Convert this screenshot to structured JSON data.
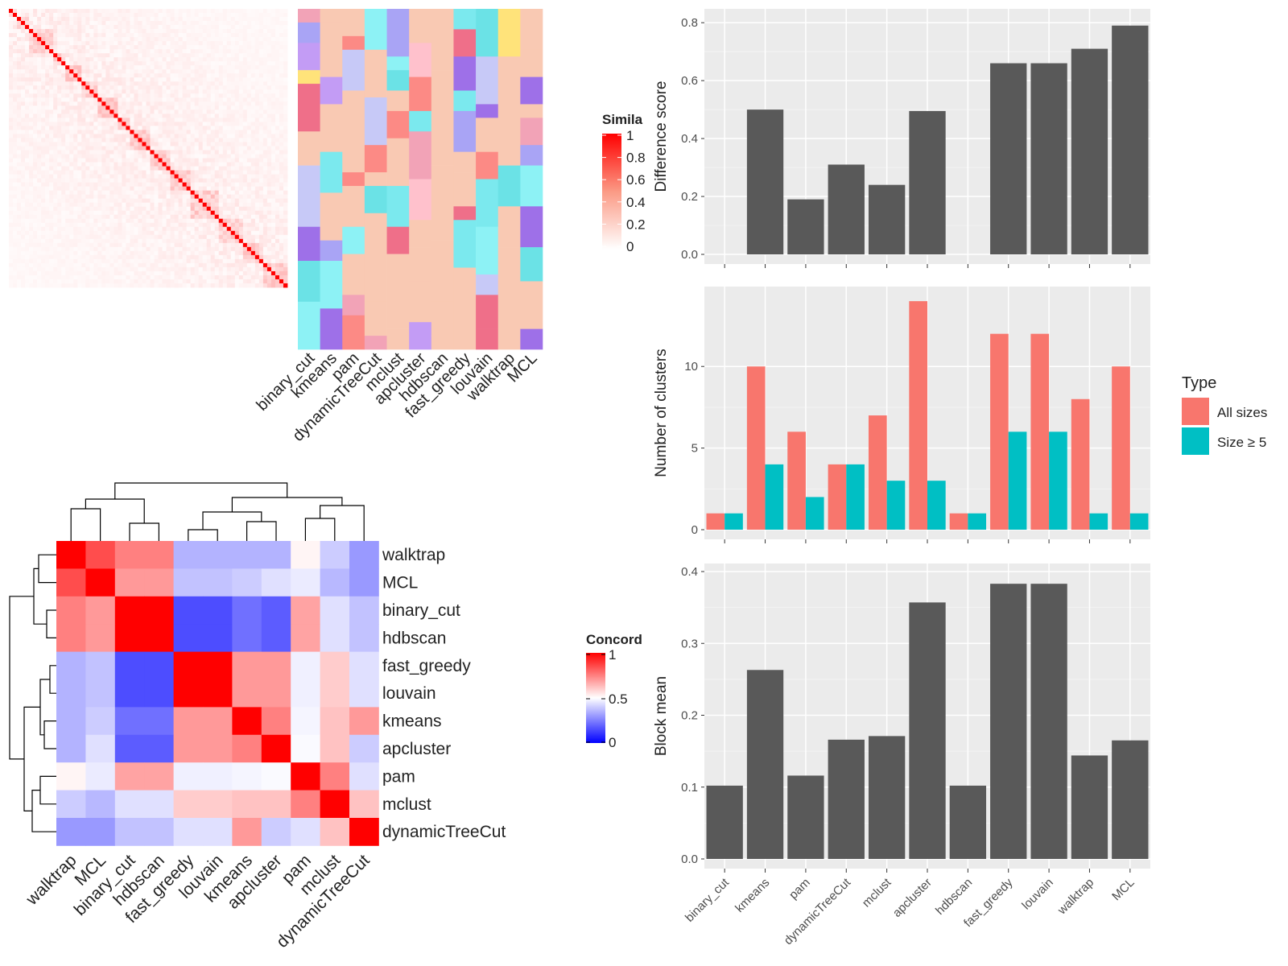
{
  "colors": {
    "panel_bg": "#ebebeb",
    "bar_dark": "#595959",
    "all_sizes": "#f8766d",
    "size_ge5": "#00bfc4",
    "heat_high": "#ff0000",
    "heat_mid": "#ffffff",
    "heat_low": "#0000ff"
  },
  "legends": {
    "similarity": {
      "title": "Simila",
      "ticks": [
        "1",
        "0.8",
        "0.6",
        "0.4",
        "0.2",
        "0"
      ]
    },
    "concordance": {
      "title": "Concord",
      "ticks": [
        "1",
        "0.5",
        "0"
      ]
    },
    "type": {
      "title": "Type",
      "items": [
        "All sizes",
        "Size ≥ 5"
      ]
    }
  },
  "top_heatmap": {
    "columns": [
      "binary_cut",
      "kmeans",
      "pam",
      "dynamicTreeCut",
      "mclust",
      "apcluster",
      "hdbscan",
      "fast_greedy",
      "louvain",
      "walktrap",
      "MCL"
    ]
  },
  "concordance_heatmap": {
    "labels": [
      "walktrap",
      "MCL",
      "binary_cut",
      "hdbscan",
      "fast_greedy",
      "louvain",
      "kmeans",
      "apcluster",
      "pam",
      "mclust",
      "dynamicTreeCut"
    ]
  },
  "chart_data": [
    {
      "type": "bar",
      "ylabel": "Difference score",
      "categories": [
        "binary_cut",
        "kmeans",
        "pam",
        "dynamicTreeCut",
        "mclust",
        "apcluster",
        "hdbscan",
        "fast_greedy",
        "louvain",
        "walktrap",
        "MCL"
      ],
      "values": [
        0.0,
        0.5,
        0.19,
        0.31,
        0.24,
        0.495,
        0.0,
        0.66,
        0.66,
        0.71,
        0.79
      ],
      "ylim": [
        0,
        0.82
      ],
      "yticks": [
        0.0,
        0.2,
        0.4,
        0.6,
        0.8
      ],
      "ytick_labels": [
        "0.0",
        "0.2",
        "0.4",
        "0.6",
        "0.8"
      ]
    },
    {
      "type": "bar",
      "ylabel": "Number of clusters",
      "categories": [
        "binary_cut",
        "kmeans",
        "pam",
        "dynamicTreeCut",
        "mclust",
        "apcluster",
        "hdbscan",
        "fast_greedy",
        "louvain",
        "walktrap",
        "MCL"
      ],
      "series": [
        {
          "name": "All sizes",
          "values": [
            1,
            10,
            6,
            4,
            7,
            14,
            1,
            12,
            12,
            8,
            10
          ]
        },
        {
          "name": "Size ≥ 5",
          "values": [
            1,
            4,
            2,
            4,
            3,
            3,
            1,
            6,
            6,
            1,
            1
          ]
        }
      ],
      "ylim": [
        0,
        14.4
      ],
      "yticks": [
        0,
        5,
        10
      ],
      "ytick_labels": [
        "0",
        "5",
        "10"
      ],
      "legend": "right"
    },
    {
      "type": "bar",
      "ylabel": "Block mean",
      "categories": [
        "binary_cut",
        "kmeans",
        "pam",
        "dynamicTreeCut",
        "mclust",
        "apcluster",
        "hdbscan",
        "fast_greedy",
        "louvain",
        "walktrap",
        "MCL"
      ],
      "values": [
        0.102,
        0.263,
        0.116,
        0.166,
        0.171,
        0.357,
        0.102,
        0.383,
        0.383,
        0.144,
        0.165
      ],
      "ylim": [
        0,
        0.4
      ],
      "yticks": [
        0.0,
        0.1,
        0.2,
        0.3,
        0.4
      ],
      "ytick_labels": [
        "0.0",
        "0.1",
        "0.2",
        "0.3",
        "0.4"
      ]
    },
    {
      "type": "heatmap",
      "labels": [
        "walktrap",
        "MCL",
        "binary_cut",
        "hdbscan",
        "fast_greedy",
        "louvain",
        "kmeans",
        "apcluster",
        "pam",
        "mclust",
        "dynamicTreeCut"
      ],
      "values": [
        [
          1.0,
          0.85,
          0.75,
          0.75,
          0.35,
          0.35,
          0.35,
          0.35,
          0.52,
          0.4,
          0.3
        ],
        [
          0.85,
          1.0,
          0.7,
          0.7,
          0.38,
          0.38,
          0.4,
          0.44,
          0.46,
          0.36,
          0.3
        ],
        [
          0.75,
          0.7,
          1.0,
          1.0,
          0.15,
          0.15,
          0.22,
          0.18,
          0.68,
          0.44,
          0.38
        ],
        [
          0.75,
          0.7,
          1.0,
          1.0,
          0.15,
          0.15,
          0.22,
          0.18,
          0.68,
          0.44,
          0.38
        ],
        [
          0.35,
          0.38,
          0.15,
          0.15,
          1.0,
          1.0,
          0.7,
          0.7,
          0.47,
          0.6,
          0.44
        ],
        [
          0.35,
          0.38,
          0.15,
          0.15,
          1.0,
          1.0,
          0.7,
          0.7,
          0.47,
          0.6,
          0.44
        ],
        [
          0.35,
          0.4,
          0.22,
          0.22,
          0.7,
          0.7,
          1.0,
          0.75,
          0.48,
          0.62,
          0.7
        ],
        [
          0.35,
          0.44,
          0.18,
          0.18,
          0.7,
          0.7,
          0.75,
          1.0,
          0.49,
          0.62,
          0.4
        ],
        [
          0.52,
          0.46,
          0.68,
          0.68,
          0.47,
          0.47,
          0.48,
          0.49,
          1.0,
          0.75,
          0.44
        ],
        [
          0.4,
          0.36,
          0.44,
          0.44,
          0.6,
          0.6,
          0.62,
          0.62,
          0.75,
          1.0,
          0.62
        ],
        [
          0.3,
          0.3,
          0.38,
          0.38,
          0.44,
          0.44,
          0.7,
          0.4,
          0.44,
          0.62,
          1.0
        ]
      ],
      "color_range": [
        0,
        1
      ]
    }
  ]
}
